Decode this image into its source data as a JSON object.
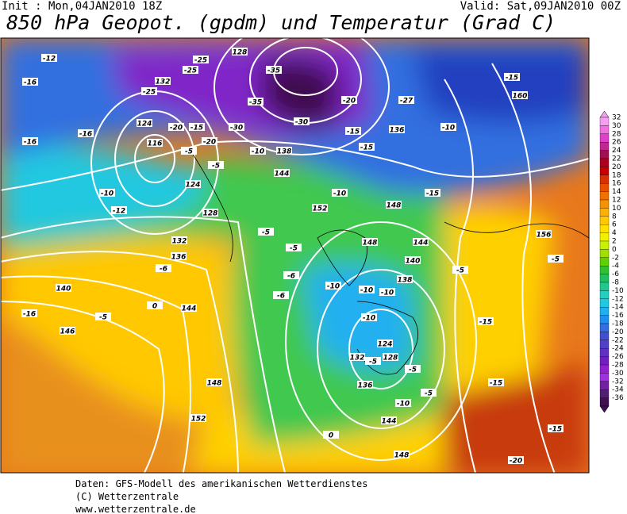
{
  "header": {
    "init": "Init : Mon,04JAN2010 18Z",
    "valid": "Valid: Sat,09JAN2010 00Z",
    "title": "850 hPa Geopot. (gpdm) und Temperatur (Grad C)"
  },
  "legend": {
    "levels": [
      32,
      30,
      28,
      26,
      24,
      22,
      20,
      18,
      16,
      14,
      12,
      10,
      8,
      6,
      4,
      2,
      0,
      -2,
      -4,
      -6,
      -8,
      -10,
      -12,
      -14,
      -16,
      -18,
      -20,
      -22,
      -24,
      -26,
      -28,
      -30,
      -32,
      -34,
      -36
    ],
    "colors": [
      "#f4a0f0",
      "#f070e0",
      "#e040c8",
      "#c02890",
      "#a01050",
      "#b00020",
      "#c80000",
      "#d83000",
      "#e85000",
      "#f07000",
      "#f89000",
      "#ffb000",
      "#ffc800",
      "#ffe000",
      "#f0f000",
      "#c8f000",
      "#a0e000",
      "#60d000",
      "#30c030",
      "#20c060",
      "#20c890",
      "#20d0c0",
      "#20c8e0",
      "#20b0f0",
      "#2090f0",
      "#3070e0",
      "#4050d0",
      "#5040c8",
      "#6030c0",
      "#7020c0",
      "#9020d0",
      "#a030e0",
      "#7020a0",
      "#502070",
      "#401050"
    ]
  },
  "map": {
    "labels": [
      "-12",
      "128",
      "-25",
      "-35",
      "-25",
      "132",
      "-25",
      "-35",
      "-20",
      "-27",
      "-15",
      "160",
      "-16",
      "124",
      "-20",
      "-15",
      "-30",
      "-30",
      "-15",
      "116",
      "-16",
      "136",
      "-10",
      "-16",
      "-20",
      "-15",
      "-5",
      "138",
      "144",
      "-10",
      "-10",
      "124",
      "-12",
      "128",
      "-15",
      "-10",
      "-5",
      "148",
      "152",
      "148",
      "144",
      "-5",
      "-5",
      "132",
      "-6",
      "-6",
      "-6",
      "136",
      "140",
      "-10",
      "-10",
      "156",
      "-5",
      "-5",
      "140",
      "-10",
      "138",
      "0",
      "144",
      "-16",
      "-5",
      "-10",
      "146",
      "124",
      "-5",
      "128",
      "132",
      "-5",
      "136",
      "-15",
      "-5",
      "148",
      "-10",
      "152",
      "144",
      "0",
      "148",
      "-15",
      "-20",
      "-15"
    ]
  },
  "footer": [
    "Daten: GFS-Modell des amerikanischen Wetterdienstes",
    "(C) Wetterzentrale",
    "www.wetterzentrale.de"
  ]
}
